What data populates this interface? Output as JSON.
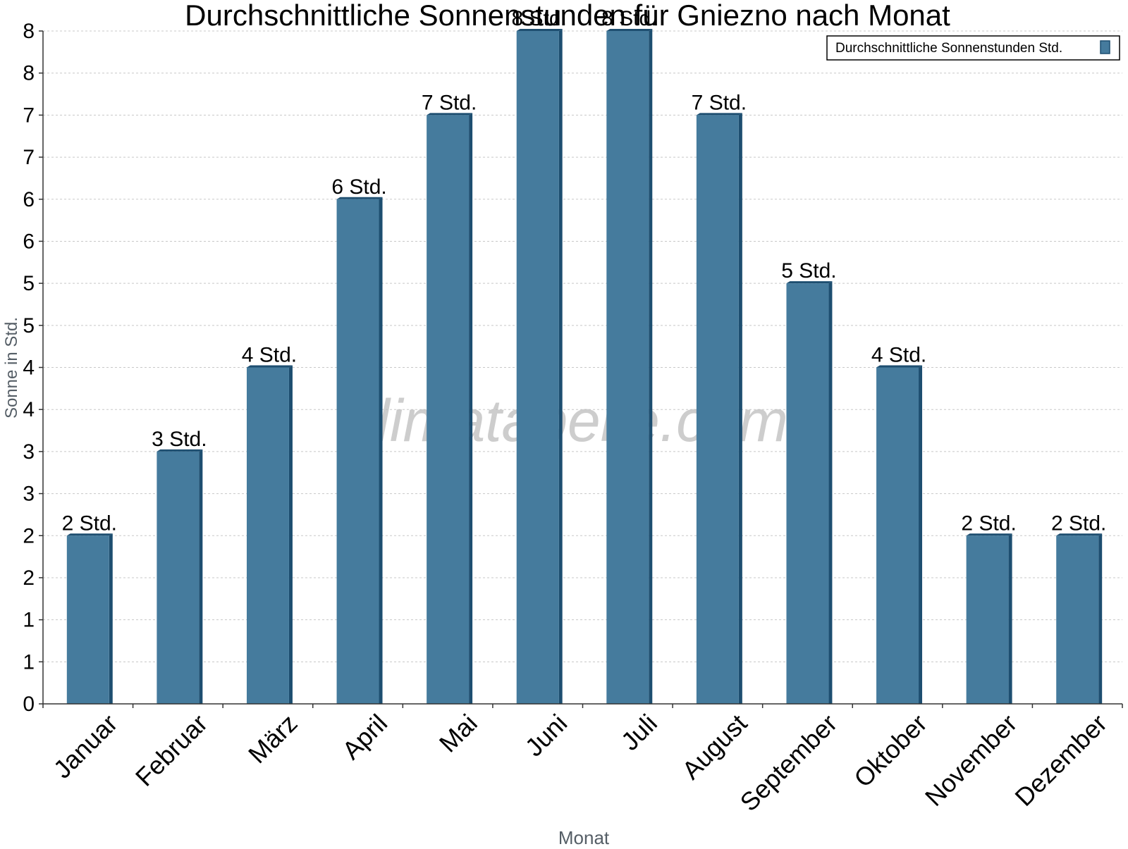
{
  "chart_data": {
    "type": "bar",
    "title": "Durchschnittliche Sonnenstunden für Gniezno nach Monat",
    "xlabel": "Monat",
    "ylabel": "Sonne in Std.",
    "categories": [
      "Januar",
      "Februar",
      "März",
      "April",
      "Mai",
      "Juni",
      "Juli",
      "August",
      "September",
      "Oktober",
      "November",
      "Dezember"
    ],
    "series": [
      {
        "name": "Durchschnittliche Sonnenstunden Std.",
        "values": [
          2,
          3,
          4,
          6,
          7,
          8,
          8,
          7,
          5,
          4,
          2,
          2
        ],
        "data_labels": [
          "2 Std.",
          "3 Std.",
          "4 Std.",
          "6 Std.",
          "7 Std.",
          "8 Std.",
          "8 Std.",
          "7 Std.",
          "5 Std.",
          "4 Std.",
          "2 Std.",
          "2 Std."
        ]
      }
    ],
    "ylim": [
      0,
      8
    ],
    "y_ticks": [
      0,
      0.5,
      1,
      1.5,
      2,
      2.5,
      3,
      3.5,
      4,
      4.5,
      5,
      5.5,
      6,
      6.5,
      7,
      7.5,
      8
    ],
    "y_tick_labels": [
      "0",
      "1",
      "1",
      "2",
      "2",
      "3",
      "3",
      "4",
      "4",
      "5",
      "5",
      "6",
      "6",
      "7",
      "7",
      "8",
      "8"
    ],
    "grid": true,
    "legend_position": "top-right",
    "colors": {
      "bar": "#457b9d",
      "bar_edge": "#1d4e70",
      "grid": "#c8c8c8",
      "axis": "#333333",
      "watermark": "#bdbdbd"
    }
  },
  "watermark": "klimatabelle.com"
}
